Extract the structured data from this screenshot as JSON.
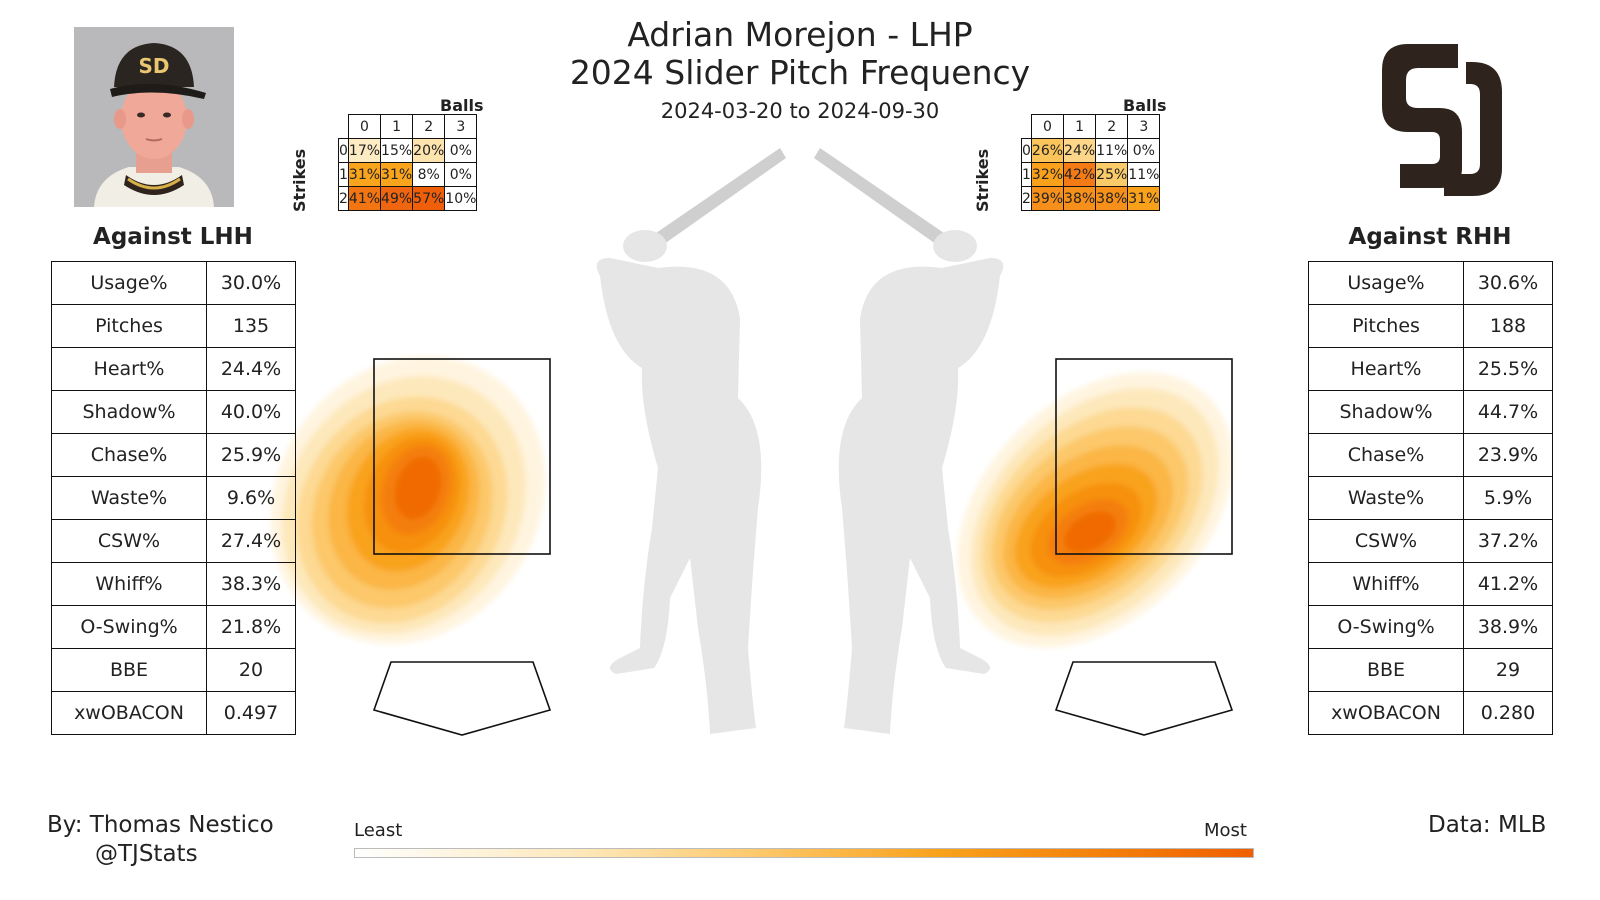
{
  "header": {
    "title_line1": "Adrian Morejon - LHP",
    "title_line2": "2024 Slider Pitch Frequency",
    "date_range": "2024-03-20 to 2024-09-30"
  },
  "icons": {
    "player_photo": "player-headshot-icon",
    "team_logo": "padres-sd-logo",
    "batter": "batter-silhouette-icon"
  },
  "colors": {
    "heat_low": "#fde8bb",
    "heat_mid": "#f9a21c",
    "heat_high": "#f05f00",
    "logo": "#2f241d"
  },
  "count_labels": {
    "balls": "Balls",
    "strikes": "Strikes",
    "ball_cols": [
      "0",
      "1",
      "2",
      "3"
    ],
    "strike_rows": [
      "0",
      "1",
      "2"
    ]
  },
  "lhh": {
    "title": "Against LHH",
    "stats": [
      {
        "label": "Usage%",
        "value": "30.0%"
      },
      {
        "label": "Pitches",
        "value": "135"
      },
      {
        "label": "Heart%",
        "value": "24.4%"
      },
      {
        "label": "Shadow%",
        "value": "40.0%"
      },
      {
        "label": "Chase%",
        "value": "25.9%"
      },
      {
        "label": "Waste%",
        "value": "9.6%"
      },
      {
        "label": "CSW%",
        "value": "27.4%"
      },
      {
        "label": "Whiff%",
        "value": "38.3%"
      },
      {
        "label": "O-Swing%",
        "value": "21.8%"
      },
      {
        "label": "BBE",
        "value": "20"
      },
      {
        "label": "xwOBACON",
        "value": "0.497"
      }
    ],
    "count_grid": [
      [
        "17%",
        "15%",
        "20%",
        "0%"
      ],
      [
        "31%",
        "31%",
        "8%",
        "0%"
      ],
      [
        "41%",
        "49%",
        "57%",
        "10%"
      ]
    ],
    "count_colors": [
      [
        "#fdebc4",
        "#ffffff",
        "#fde3ad",
        "#ffffff"
      ],
      [
        "#f8a41d",
        "#f8a41d",
        "#ffffff",
        "#ffffff"
      ],
      [
        "#f27512",
        "#f06510",
        "#ef5f0a",
        "#ffffff"
      ]
    ]
  },
  "rhh": {
    "title": "Against RHH",
    "stats": [
      {
        "label": "Usage%",
        "value": "30.6%"
      },
      {
        "label": "Pitches",
        "value": "188"
      },
      {
        "label": "Heart%",
        "value": "25.5%"
      },
      {
        "label": "Shadow%",
        "value": "44.7%"
      },
      {
        "label": "Chase%",
        "value": "23.9%"
      },
      {
        "label": "Waste%",
        "value": "5.9%"
      },
      {
        "label": "CSW%",
        "value": "37.2%"
      },
      {
        "label": "Whiff%",
        "value": "41.2%"
      },
      {
        "label": "O-Swing%",
        "value": "38.9%"
      },
      {
        "label": "BBE",
        "value": "29"
      },
      {
        "label": "xwOBACON",
        "value": "0.280"
      }
    ],
    "count_grid": [
      [
        "26%",
        "24%",
        "11%",
        "0%"
      ],
      [
        "32%",
        "42%",
        "25%",
        "11%"
      ],
      [
        "39%",
        "38%",
        "38%",
        "31%"
      ]
    ],
    "count_colors": [
      [
        "#fbc45a",
        "#fdd68a",
        "#ffffff",
        "#ffffff"
      ],
      [
        "#f9a11b",
        "#f37a14",
        "#fbcb6a",
        "#ffffff"
      ],
      [
        "#f6901a",
        "#f6901a",
        "#f6901a",
        "#f9a11b"
      ]
    ]
  },
  "chart_data": {
    "type": "heatmap",
    "title": "2024 Slider Pitch Frequency",
    "legend": {
      "low_label": "Least",
      "high_label": "Most"
    },
    "panels": [
      {
        "name": "Against LHH",
        "density_peak_location": "lower-left of zone"
      },
      {
        "name": "Against RHH",
        "density_peak_location": "lower-left of zone"
      }
    ]
  },
  "footer": {
    "author": "By: Thomas Nestico",
    "handle": "@TJStats",
    "source": "Data: MLB"
  }
}
